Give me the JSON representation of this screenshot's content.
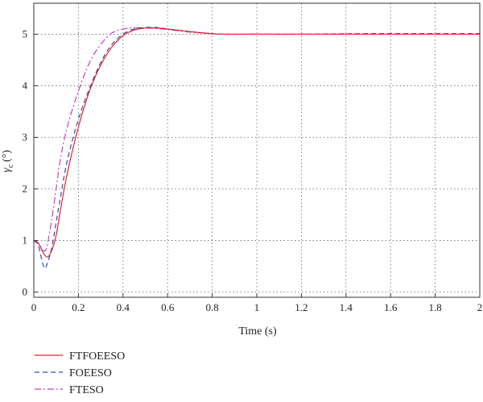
{
  "chart_data": {
    "type": "line",
    "title": "",
    "xlabel": "Time (s)",
    "ylabel_main": "γ",
    "ylabel_sub": "c",
    "ylabel_unit": "(°)",
    "xlim": [
      0,
      2
    ],
    "ylim": [
      -0.1,
      5.6
    ],
    "xticks": [
      0,
      0.2,
      0.4,
      0.6,
      0.8,
      1,
      1.2,
      1.4,
      1.6,
      1.8,
      2
    ],
    "xtick_labels": [
      "0",
      "0.2",
      "0.4",
      "0.6",
      "0.8",
      "1",
      "1.2",
      "1.4",
      "1.6",
      "1.8",
      "2"
    ],
    "yticks": [
      0,
      1,
      2,
      3,
      4,
      5
    ],
    "ytick_labels": [
      "0",
      "1",
      "2",
      "3",
      "4",
      "5"
    ],
    "grid": true,
    "legend_position": "below-left",
    "series": [
      {
        "name": "FTFOEESO",
        "color": "#e8202a",
        "dash": "solid",
        "x": [
          0,
          0.02,
          0.04,
          0.06,
          0.08,
          0.1,
          0.12,
          0.15,
          0.2,
          0.25,
          0.3,
          0.35,
          0.4,
          0.45,
          0.5,
          0.55,
          0.6,
          0.7,
          0.8,
          0.85,
          1,
          1.2,
          1.5,
          2
        ],
        "y": [
          1.0,
          0.95,
          0.78,
          0.68,
          0.8,
          1.1,
          1.6,
          2.3,
          3.2,
          3.9,
          4.4,
          4.75,
          4.97,
          5.08,
          5.12,
          5.12,
          5.1,
          5.05,
          5.01,
          5.0,
          5.0,
          5.0,
          5.0,
          5.0
        ]
      },
      {
        "name": "FOEESO",
        "color": "#2a4fb0",
        "dash": "6,4",
        "x": [
          0,
          0.02,
          0.04,
          0.05,
          0.06,
          0.08,
          0.1,
          0.12,
          0.15,
          0.2,
          0.25,
          0.3,
          0.35,
          0.4,
          0.45,
          0.5,
          0.55,
          0.6,
          0.7,
          0.8,
          0.85,
          1,
          1.2,
          1.5,
          2
        ],
        "y": [
          1.0,
          0.9,
          0.55,
          0.46,
          0.55,
          0.85,
          1.35,
          1.85,
          2.55,
          3.35,
          3.95,
          4.45,
          4.8,
          5.0,
          5.1,
          5.13,
          5.13,
          5.1,
          5.05,
          5.01,
          5.0,
          5.0,
          5.0,
          5.01,
          5.01
        ]
      },
      {
        "name": "FTESO",
        "color": "#c040c0",
        "dash": "8,3,2,3",
        "x": [
          0,
          0.02,
          0.04,
          0.05,
          0.06,
          0.08,
          0.1,
          0.12,
          0.15,
          0.2,
          0.25,
          0.3,
          0.35,
          0.4,
          0.45,
          0.5,
          0.55,
          0.6,
          0.7,
          0.8,
          0.85,
          1,
          1.2,
          1.5,
          2
        ],
        "y": [
          1.0,
          0.95,
          0.82,
          0.8,
          0.9,
          1.4,
          2.0,
          2.6,
          3.2,
          3.9,
          4.45,
          4.8,
          5.02,
          5.1,
          5.12,
          5.12,
          5.11,
          5.09,
          5.04,
          5.01,
          5.0,
          5.0,
          5.0,
          5.0,
          5.0
        ]
      }
    ]
  }
}
